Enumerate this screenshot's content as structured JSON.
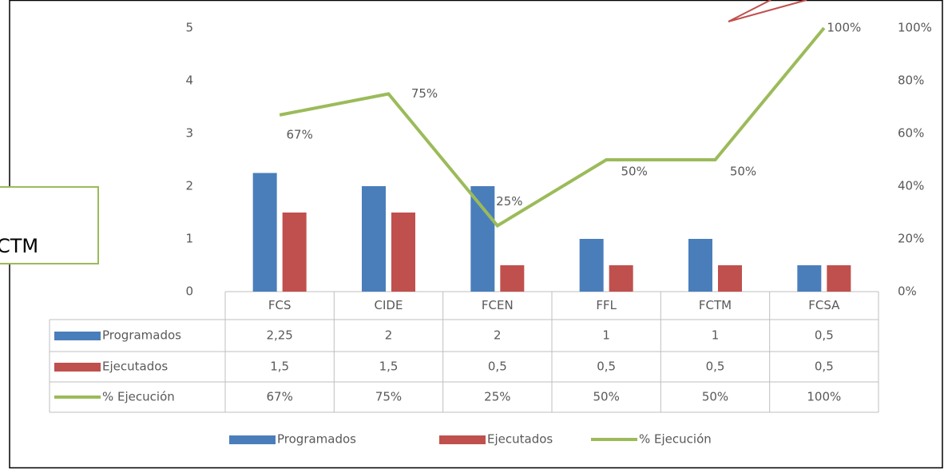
{
  "chart_data": {
    "type": "bar",
    "categories": [
      "FCS",
      "CIDE",
      "FCEN",
      "FFL",
      "FCTM",
      "FCSA"
    ],
    "series": [
      {
        "name": "Programados",
        "color": "#4a7ebb",
        "values": [
          2.25,
          2,
          2,
          1,
          1,
          0.5
        ],
        "value_labels": [
          "2,25",
          "2",
          "2",
          "1",
          "1",
          "0,5"
        ]
      },
      {
        "name": "Ejecutados",
        "color": "#c0504d",
        "values": [
          1.5,
          1.5,
          0.5,
          0.5,
          0.5,
          0.5
        ],
        "value_labels": [
          "1,5",
          "1,5",
          "0,5",
          "0,5",
          "0,5",
          "0,5"
        ]
      },
      {
        "name": "% Ejecución",
        "type": "line",
        "axis": "y2",
        "color": "#9bbb59",
        "values": [
          67,
          75,
          25,
          50,
          50,
          100
        ],
        "value_labels": [
          "67%",
          "75%",
          "25%",
          "50%",
          "50%",
          "100%"
        ]
      }
    ],
    "ylim": [
      0,
      5
    ],
    "yticks": [
      0,
      1,
      2,
      3,
      4,
      5
    ],
    "y2lim": [
      0,
      100
    ],
    "y2ticks": [
      {
        "value": 0,
        "label": "0%"
      },
      {
        "value": 20,
        "label": "20%"
      },
      {
        "value": 40,
        "label": "40%"
      },
      {
        "value": 60,
        "label": "60%"
      },
      {
        "value": 80,
        "label": "80%"
      },
      {
        "value": 100,
        "label": "100%"
      }
    ]
  },
  "annotation": "CTM"
}
